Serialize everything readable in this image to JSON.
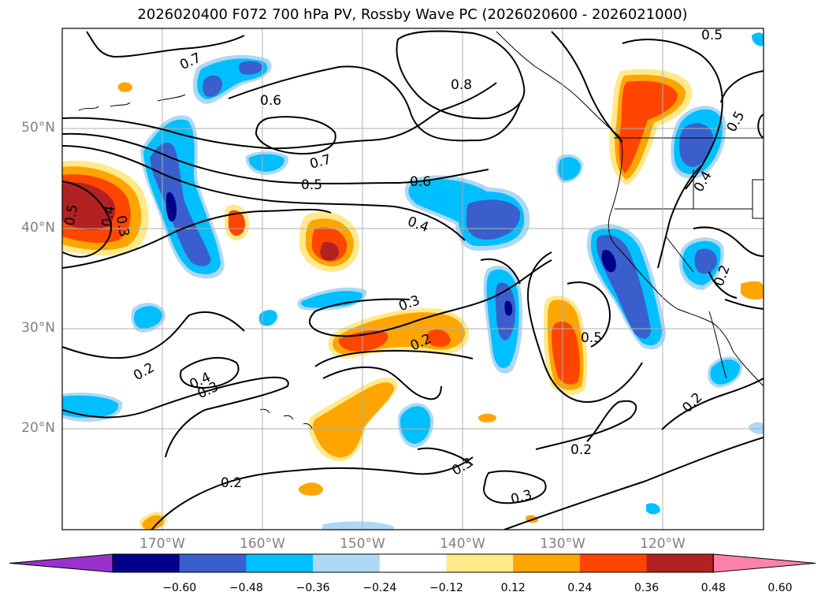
{
  "title": "2026020400 F072 700 hPa PV, Rossby Wave PC (2026020600 - 2026021000)",
  "latitude_labels": [
    "50°N",
    "40°N",
    "30°N",
    "20°N"
  ],
  "longitude_labels": [
    "170°W",
    "160°W",
    "150°W",
    "140°W",
    "130°W",
    "120°W"
  ],
  "contour_labels": [
    "0.5",
    "0.7",
    "0.6",
    "0.8",
    "0.7",
    "0.5",
    "0.6",
    "0.4",
    "0.5",
    "0.4",
    "0.3",
    "0.3",
    "0.2",
    "0.4",
    "0.3",
    "0.2",
    "0.5",
    "0.2",
    "0.3",
    "0.2",
    "0.2",
    "0.3",
    "0.4",
    "0.5",
    "0.2"
  ],
  "colorbar": {
    "ticks": [
      "−0.60",
      "−0.48",
      "−0.36",
      "−0.24",
      "−0.12",
      "0.12",
      "0.24",
      "0.36",
      "0.48",
      "0.60"
    ],
    "colors": [
      "#9932cc",
      "#00008b",
      "#3a5fcd",
      "#00bfff",
      "#add8f6",
      "#ffffff",
      "#ffe98b",
      "#ffa500",
      "#ff4500",
      "#b22222",
      "#ff82ab"
    ]
  },
  "colors": {
    "contour": "#000000",
    "grid": "#b0b0b0",
    "axis_label": "#808080"
  }
}
